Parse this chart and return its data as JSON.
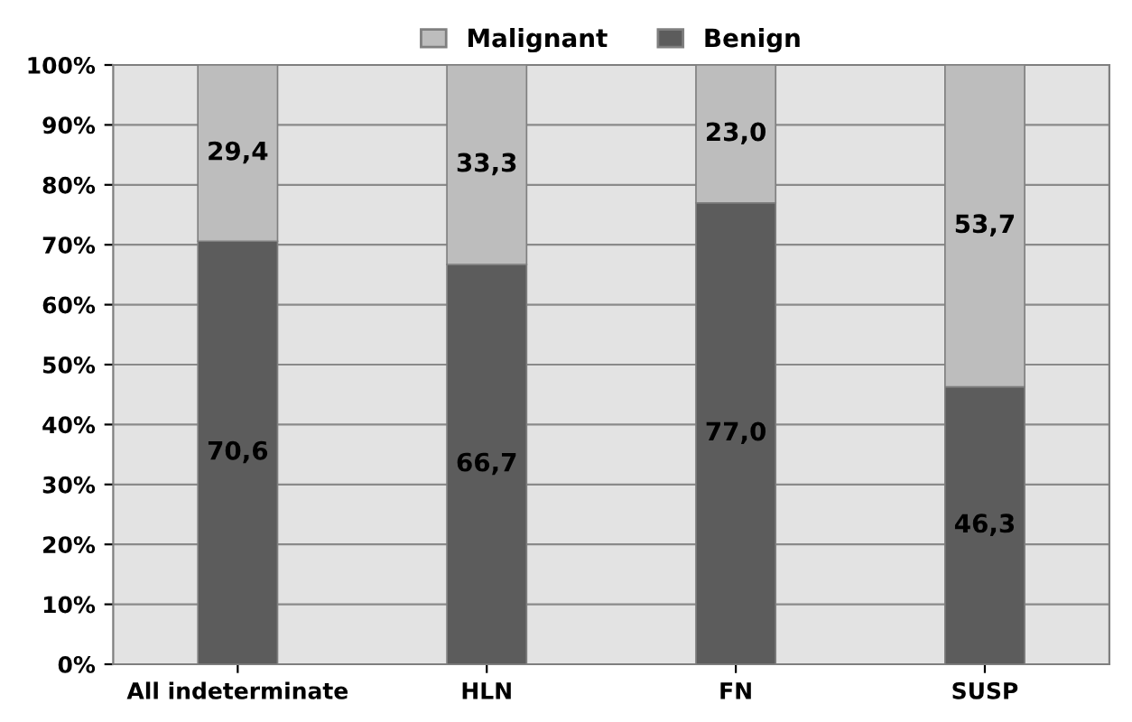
{
  "chart_data": {
    "type": "bar",
    "stacked": true,
    "categories": [
      "All indeterminate",
      "HLN",
      "FN",
      "SUSP"
    ],
    "series": [
      {
        "name": "Benign",
        "color": "#5c5c5c",
        "values": [
          70.6,
          66.7,
          77.0,
          46.3
        ],
        "value_labels": [
          "70,6",
          "66,7",
          "77,0",
          "46,3"
        ]
      },
      {
        "name": "Malignant",
        "color": "#bdbdbd",
        "values": [
          29.4,
          33.3,
          23.0,
          53.7
        ],
        "value_labels": [
          "29,4",
          "33,3",
          "23,0",
          "53,7"
        ]
      }
    ],
    "ylim": [
      0,
      100
    ],
    "yticks": [
      {
        "value": 0,
        "label": "0%"
      },
      {
        "value": 10,
        "label": "10%"
      },
      {
        "value": 20,
        "label": "20%"
      },
      {
        "value": 30,
        "label": "30%"
      },
      {
        "value": 40,
        "label": "40%"
      },
      {
        "value": 50,
        "label": "50%"
      },
      {
        "value": 60,
        "label": "60%"
      },
      {
        "value": 70,
        "label": "70%"
      },
      {
        "value": 80,
        "label": "80%"
      },
      {
        "value": 90,
        "label": "90%"
      },
      {
        "value": 100,
        "label": "100%"
      }
    ],
    "grid": "y",
    "legend": "top"
  }
}
